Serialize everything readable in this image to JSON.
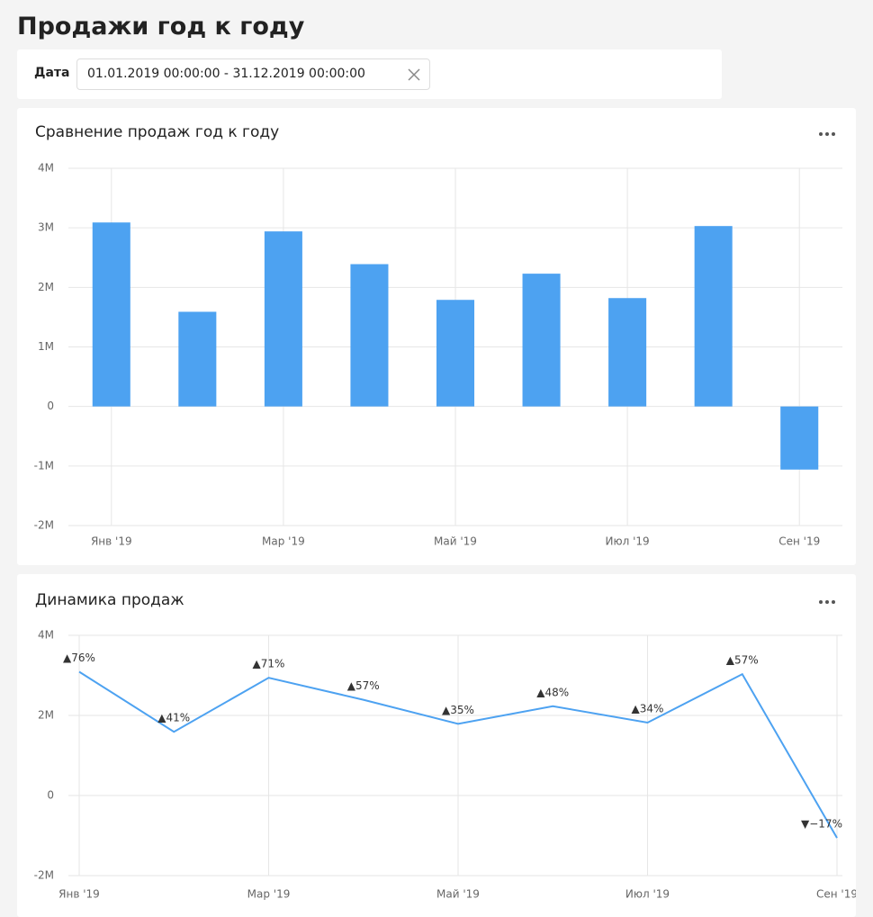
{
  "title": "Продажи год к году",
  "filter": {
    "label": "Дата",
    "value": "01.01.2019 00:00:00 - 31.12.2019 00:00:00"
  },
  "chart_data": [
    {
      "type": "bar",
      "title": "Сравнение продаж год к году",
      "categories": [
        "Янв '19",
        null,
        "Мар '19",
        null,
        "Май '19",
        null,
        "Июл '19",
        null,
        "Сен '19"
      ],
      "values": [
        3090000,
        1590000,
        2940000,
        2390000,
        1790000,
        2230000,
        1820000,
        3030000,
        -1060000
      ],
      "color": "#4da2f1",
      "ylim": [
        -2000000,
        4000000
      ],
      "yticks": [
        {
          "value": -2000000,
          "label": "-2M"
        },
        {
          "value": -1000000,
          "label": "-1M"
        },
        0,
        {
          "value": 1000000,
          "label": "1M"
        },
        {
          "value": 2000000,
          "label": "2M"
        },
        {
          "value": 3000000,
          "label": "3M"
        },
        {
          "value": 4000000,
          "label": "4M"
        }
      ],
      "grid": true
    },
    {
      "type": "line",
      "title": "Динамика продаж",
      "categories": [
        "Янв '19",
        null,
        "Мар '19",
        null,
        "Май '19",
        null,
        "Июл '19",
        null,
        "Сен '19"
      ],
      "values": [
        3090000,
        1590000,
        2940000,
        2390000,
        1790000,
        2230000,
        1820000,
        3030000,
        -1060000
      ],
      "labels": [
        "▲76%",
        "▲41%",
        "▲71%",
        "▲57%",
        "▲35%",
        "▲48%",
        "▲34%",
        "▲57%",
        "▼−17%"
      ],
      "color": "#4da2f1",
      "ylim": [
        -2000000,
        4000000
      ],
      "yticks": [
        {
          "value": -2000000,
          "label": "-2M"
        },
        0,
        {
          "value": 2000000,
          "label": "2M"
        },
        {
          "value": 4000000,
          "label": "4M"
        }
      ],
      "grid": true
    }
  ]
}
